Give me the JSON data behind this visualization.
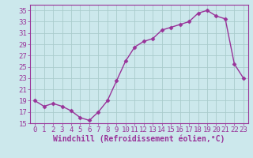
{
  "x": [
    0,
    1,
    2,
    3,
    4,
    5,
    6,
    7,
    8,
    9,
    10,
    11,
    12,
    13,
    14,
    15,
    16,
    17,
    18,
    19,
    20,
    21,
    22,
    23
  ],
  "y": [
    19,
    18,
    18.5,
    18,
    17.2,
    16,
    15.5,
    17,
    19,
    22.5,
    26,
    28.5,
    29.5,
    30,
    31.5,
    32,
    32.5,
    33,
    34.5,
    35,
    34,
    33.5,
    25.5,
    23
  ],
  "line_color": "#993399",
  "marker": "D",
  "marker_size": 2.5,
  "bg_color": "#cce8ec",
  "grid_color": "#b0d8de",
  "xlabel": "Windchill (Refroidissement éolien,°C)",
  "xlim": [
    -0.5,
    23.5
  ],
  "ylim": [
    15,
    36
  ],
  "yticks": [
    15,
    17,
    19,
    21,
    23,
    25,
    27,
    29,
    31,
    33,
    35
  ],
  "xticks": [
    0,
    1,
    2,
    3,
    4,
    5,
    6,
    7,
    8,
    9,
    10,
    11,
    12,
    13,
    14,
    15,
    16,
    17,
    18,
    19,
    20,
    21,
    22,
    23
  ],
  "xlabel_fontsize": 7,
  "tick_fontsize": 6.5,
  "line_width": 1.0
}
